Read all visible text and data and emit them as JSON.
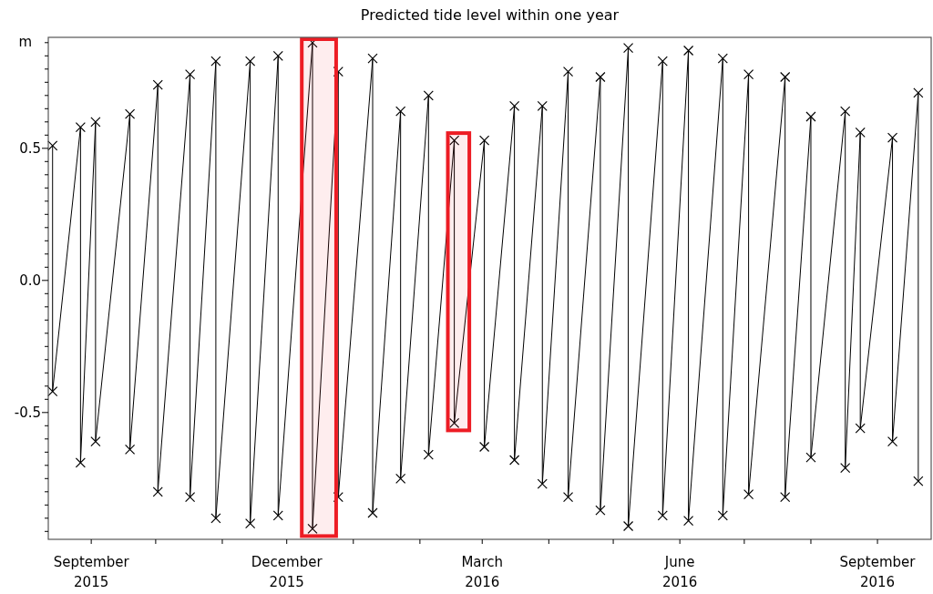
{
  "chart_data": {
    "type": "line",
    "title": "Predicted tide level within one year",
    "ylabel": "m",
    "x": [
      "2015-08-14",
      "2015-08-14",
      "2015-08-27",
      "2015-08-27",
      "2015-09-03",
      "2015-09-03",
      "2015-09-19",
      "2015-09-19",
      "2015-10-02",
      "2015-10-02",
      "2015-10-17",
      "2015-10-17",
      "2015-10-29",
      "2015-10-29",
      "2015-11-14",
      "2015-11-14",
      "2015-11-27",
      "2015-11-27",
      "2015-12-13",
      "2015-12-13",
      "2015-12-25",
      "2015-12-25",
      "2016-01-10",
      "2016-01-10",
      "2016-01-23",
      "2016-01-23",
      "2016-02-05",
      "2016-02-05",
      "2016-02-17",
      "2016-02-17",
      "2016-03-02",
      "2016-03-02",
      "2016-03-16",
      "2016-03-16",
      "2016-03-29",
      "2016-03-29",
      "2016-04-10",
      "2016-04-10",
      "2016-04-25",
      "2016-04-25",
      "2016-05-08",
      "2016-05-08",
      "2016-05-24",
      "2016-05-24",
      "2016-06-05",
      "2016-06-05",
      "2016-06-21",
      "2016-06-21",
      "2016-07-03",
      "2016-07-03",
      "2016-07-20",
      "2016-07-20",
      "2016-08-01",
      "2016-08-01",
      "2016-08-17",
      "2016-08-17",
      "2016-08-24",
      "2016-08-24",
      "2016-09-08",
      "2016-09-08",
      "2016-09-20",
      "2016-09-20"
    ],
    "series": [
      {
        "color": "#000000",
        "values": [
          0.51,
          -0.42,
          0.58,
          -0.69,
          0.6,
          -0.61,
          0.63,
          -0.64,
          0.74,
          -0.8,
          0.78,
          -0.82,
          0.83,
          -0.9,
          0.83,
          -0.92,
          0.85,
          -0.89,
          0.9,
          -0.94,
          0.79,
          -0.82,
          0.84,
          -0.88,
          0.64,
          -0.75,
          0.7,
          -0.66,
          0.53,
          -0.54,
          0.53,
          -0.63,
          0.66,
          -0.68,
          0.66,
          -0.77,
          0.79,
          -0.82,
          0.77,
          -0.87,
          0.88,
          -0.93,
          0.83,
          -0.89,
          0.87,
          -0.91,
          0.84,
          -0.89,
          0.78,
          -0.81,
          0.77,
          -0.82,
          0.62,
          -0.67,
          0.64,
          -0.71,
          0.56,
          -0.56,
          0.54,
          -0.61,
          0.71,
          -0.76
        ]
      }
    ],
    "marker": "cross",
    "xlim": [
      "2015-08-12",
      "2016-09-26"
    ],
    "xticks": [
      {
        "value": "2015-09-01",
        "label": "September\n2015"
      },
      {
        "value": "2015-10-01",
        "label": null
      },
      {
        "value": "2015-11-01",
        "label": null
      },
      {
        "value": "2015-12-01",
        "label": "December\n2015"
      },
      {
        "value": "2016-01-01",
        "label": null
      },
      {
        "value": "2016-02-01",
        "label": null
      },
      {
        "value": "2016-03-01",
        "label": "March\n2016"
      },
      {
        "value": "2016-04-01",
        "label": null
      },
      {
        "value": "2016-05-01",
        "label": null
      },
      {
        "value": "2016-06-01",
        "label": "June\n2016"
      },
      {
        "value": "2016-07-01",
        "label": null
      },
      {
        "value": "2016-08-01",
        "label": null
      },
      {
        "value": "2016-09-01",
        "label": "September\n2016"
      }
    ],
    "ylim": [
      -0.98,
      0.92
    ],
    "yticks": [
      {
        "value": -0.95,
        "label": null
      },
      {
        "value": -0.9,
        "label": null
      },
      {
        "value": -0.85,
        "label": null
      },
      {
        "value": -0.8,
        "label": null
      },
      {
        "value": -0.75,
        "label": null
      },
      {
        "value": -0.7,
        "label": null
      },
      {
        "value": -0.65,
        "label": null
      },
      {
        "value": -0.6,
        "label": null
      },
      {
        "value": -0.55,
        "label": null
      },
      -0.5,
      {
        "value": -0.45,
        "label": null
      },
      {
        "value": -0.4,
        "label": null
      },
      {
        "value": -0.35,
        "label": null
      },
      {
        "value": -0.3,
        "label": null
      },
      {
        "value": -0.25,
        "label": null
      },
      {
        "value": -0.2,
        "label": null
      },
      {
        "value": -0.15,
        "label": null
      },
      {
        "value": -0.1,
        "label": null
      },
      {
        "value": -0.05,
        "label": null
      },
      {
        "value": 0,
        "label": "0.0"
      },
      {
        "value": 0.05,
        "label": null
      },
      {
        "value": 0.1,
        "label": null
      },
      {
        "value": 0.15,
        "label": null
      },
      {
        "value": 0.2,
        "label": null
      },
      {
        "value": 0.25,
        "label": null
      },
      {
        "value": 0.3,
        "label": null
      },
      {
        "value": 0.35,
        "label": null
      },
      {
        "value": 0.4,
        "label": null
      },
      {
        "value": 0.45,
        "label": null
      },
      0.5,
      {
        "value": 0.55,
        "label": null
      },
      {
        "value": 0.6,
        "label": null
      },
      {
        "value": 0.65,
        "label": null
      },
      {
        "value": 0.7,
        "label": null
      },
      {
        "value": 0.75,
        "label": null
      },
      {
        "value": 0.8,
        "label": null
      },
      {
        "value": 0.85,
        "label": null
      },
      {
        "value": 0.9,
        "label": null
      }
    ],
    "bands": [
      {
        "axis": "x",
        "from": "2015-12-08",
        "to": "2015-12-24",
        "color": "#ed1c24"
      },
      {
        "axis": "x",
        "from": "2016-02-14",
        "to": "2016-02-24",
        "color": "#ed1c24"
      }
    ]
  }
}
